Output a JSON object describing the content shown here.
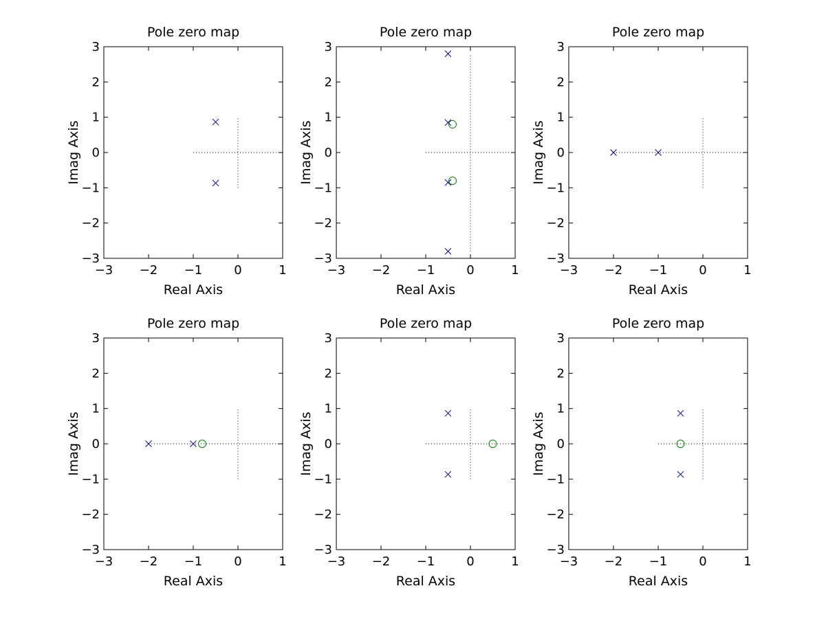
{
  "chart_data": [
    {
      "type": "scatter",
      "title": "Pole zero map",
      "xlabel": "Real Axis",
      "ylabel": "Imag Axis",
      "xlim": [
        -3,
        1
      ],
      "ylim": [
        -3,
        3
      ],
      "xticks": [
        "−3",
        "−2",
        "−1",
        "0",
        "1"
      ],
      "yticks": [
        "3",
        "2",
        "1",
        "0",
        "−1",
        "−2",
        "−3"
      ],
      "poles": [
        [
          -0.5,
          0.866
        ],
        [
          -0.5,
          -0.866
        ]
      ],
      "zeros": []
    },
    {
      "type": "scatter",
      "title": "Pole zero map",
      "xlabel": "Real Axis",
      "ylabel": "Imag Axis",
      "xlim": [
        -3,
        1
      ],
      "ylim": [
        -3,
        3
      ],
      "xticks": [
        "−3",
        "−2",
        "−1",
        "0",
        "1"
      ],
      "yticks": [
        "3",
        "2",
        "1",
        "0",
        "−1",
        "−2",
        "−3"
      ],
      "poles": [
        [
          -0.5,
          2.8
        ],
        [
          -0.5,
          0.85
        ],
        [
          -0.5,
          -0.85
        ],
        [
          -0.5,
          -2.8
        ]
      ],
      "zeros": [
        [
          -0.4,
          0.8
        ],
        [
          -0.4,
          -0.8
        ]
      ]
    },
    {
      "type": "scatter",
      "title": "Pole zero map",
      "xlabel": "Real Axis",
      "ylabel": "Imag Axis",
      "xlim": [
        -3,
        1
      ],
      "ylim": [
        -3,
        3
      ],
      "xticks": [
        "−3",
        "−2",
        "−1",
        "0",
        "1"
      ],
      "yticks": [
        "3",
        "2",
        "1",
        "0",
        "−1",
        "−2",
        "−3"
      ],
      "poles": [
        [
          -2,
          0
        ],
        [
          -1,
          0
        ]
      ],
      "zeros": []
    },
    {
      "type": "scatter",
      "title": "Pole zero map",
      "xlabel": "Real Axis",
      "ylabel": "Imag Axis",
      "xlim": [
        -3,
        1
      ],
      "ylim": [
        -3,
        3
      ],
      "xticks": [
        "−3",
        "−2",
        "−1",
        "0",
        "1"
      ],
      "yticks": [
        "3",
        "2",
        "1",
        "0",
        "−1",
        "−2",
        "−3"
      ],
      "poles": [
        [
          -2,
          0
        ],
        [
          -1,
          0
        ]
      ],
      "zeros": [
        [
          -0.8,
          0
        ]
      ]
    },
    {
      "type": "scatter",
      "title": "Pole zero map",
      "xlabel": "Real Axis",
      "ylabel": "Imag Axis",
      "xlim": [
        -3,
        1
      ],
      "ylim": [
        -3,
        3
      ],
      "xticks": [
        "−3",
        "−2",
        "−1",
        "0",
        "1"
      ],
      "yticks": [
        "3",
        "2",
        "1",
        "0",
        "−1",
        "−2",
        "−3"
      ],
      "poles": [
        [
          -0.5,
          0.866
        ],
        [
          -0.5,
          -0.866
        ]
      ],
      "zeros": [
        [
          0.5,
          0
        ]
      ]
    },
    {
      "type": "scatter",
      "title": "Pole zero map",
      "xlabel": "Real Axis",
      "ylabel": "Imag Axis",
      "xlim": [
        -3,
        1
      ],
      "ylim": [
        -3,
        3
      ],
      "xticks": [
        "−3",
        "−2",
        "−1",
        "0",
        "1"
      ],
      "yticks": [
        "3",
        "2",
        "1",
        "0",
        "−1",
        "−2",
        "−3"
      ],
      "poles": [
        [
          -0.5,
          0.866
        ],
        [
          -0.5,
          -0.866
        ]
      ],
      "zeros": [
        [
          -0.5,
          0
        ]
      ]
    }
  ],
  "colors": {
    "pole": "#00008b",
    "zero": "#008000",
    "axes": "#000000",
    "background": "#ffffff"
  },
  "marker_icons": {
    "pole": "x-marker-icon",
    "zero": "circle-marker-icon"
  }
}
